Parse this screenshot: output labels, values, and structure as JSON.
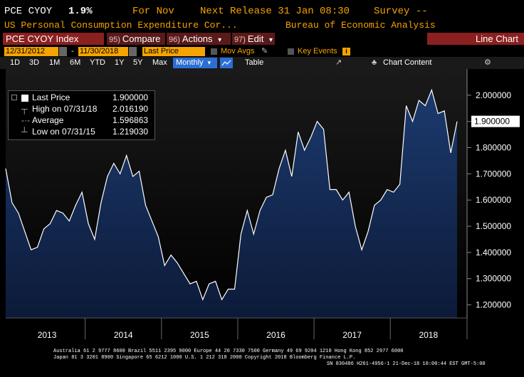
{
  "header": {
    "ticker": "PCE CYOY",
    "last": "1.9%",
    "for_label": "For Nov",
    "next_release": "Next Release 31 Jan 08:30",
    "survey": "Survey --",
    "description": "US Personal Consumption Expenditure Cor...",
    "source": "Bureau of Economic Analysis"
  },
  "toolbar": {
    "index_label": "PCE CYOY Index",
    "compare": {
      "num": "95)",
      "label": "Compare"
    },
    "actions": {
      "num": "96)",
      "label": "Actions"
    },
    "edit": {
      "num": "97)",
      "label": "Edit"
    },
    "dropdown_glyph": "▾",
    "line_chart": "Line Chart"
  },
  "range": {
    "start": "12/31/2012",
    "sep": "-",
    "end": "11/30/2018",
    "field": "Last Price",
    "mov_avgs": "Mov Avgs",
    "key_events": "Key Events",
    "info_glyph": "i"
  },
  "periods": [
    "1D",
    "3D",
    "1M",
    "6M",
    "YTD",
    "1Y",
    "5Y",
    "Max"
  ],
  "frequency": "Monthly",
  "table_label": "Table",
  "chart_content_label": "Chart Content",
  "legend": {
    "items": [
      {
        "name": "Last Price",
        "value": "1.900000"
      },
      {
        "name": "High on 07/31/18",
        "value": "2.016190"
      },
      {
        "name": "Average",
        "value": "1.596863"
      },
      {
        "name": "Low on 07/31/15",
        "value": "1.219030"
      }
    ]
  },
  "chart_data": {
    "type": "area",
    "x_start": "2012-12",
    "x_end": "2018-11",
    "frequency": "monthly",
    "values": [
      1.72,
      1.59,
      1.55,
      1.48,
      1.41,
      1.42,
      1.49,
      1.51,
      1.56,
      1.55,
      1.52,
      1.58,
      1.63,
      1.51,
      1.45,
      1.59,
      1.69,
      1.74,
      1.7,
      1.77,
      1.69,
      1.71,
      1.58,
      1.52,
      1.46,
      1.35,
      1.39,
      1.36,
      1.32,
      1.28,
      1.29,
      1.22,
      1.28,
      1.29,
      1.22,
      1.26,
      1.26,
      1.47,
      1.56,
      1.47,
      1.56,
      1.61,
      1.62,
      1.72,
      1.79,
      1.69,
      1.86,
      1.79,
      1.84,
      1.9,
      1.87,
      1.64,
      1.64,
      1.6,
      1.63,
      1.5,
      1.41,
      1.48,
      1.58,
      1.6,
      1.64,
      1.63,
      1.66,
      1.96,
      1.9,
      1.98,
      1.96,
      2.02,
      1.93,
      1.94,
      1.78,
      1.9
    ],
    "years": [
      "2013",
      "2014",
      "2015",
      "2016",
      "2017",
      "2018"
    ],
    "y_ticks": [
      "1.200000",
      "1.300000",
      "1.400000",
      "1.500000",
      "1.600000",
      "1.700000",
      "1.800000",
      "1.900000",
      "2.000000"
    ],
    "ylim": [
      1.15,
      2.1
    ],
    "last_value_label": "1.900000",
    "colors": {
      "line": "#ffffff",
      "fill_top": "#1c3a6e",
      "fill_bottom": "#0a1530",
      "bg": "#1a1a1a",
      "plot_bg": "#000000"
    }
  },
  "footer": {
    "line1": "Australia 61 2 9777 8600 Brazil 5511 2395 9000 Europe 44 20 7330 7500 Germany 49 69 9204 1210 Hong Kong 852 2977 6000",
    "line2": "Japan 81 3 3201 8900         Singapore 65 6212 1000         U.S. 1 212 318 2000         Copyright 2018 Bloomberg Finance L.P.",
    "line3": "SN 830486 H261-4956-1 21-Dec-18 10:00:44 EST  GMT-5:00"
  }
}
